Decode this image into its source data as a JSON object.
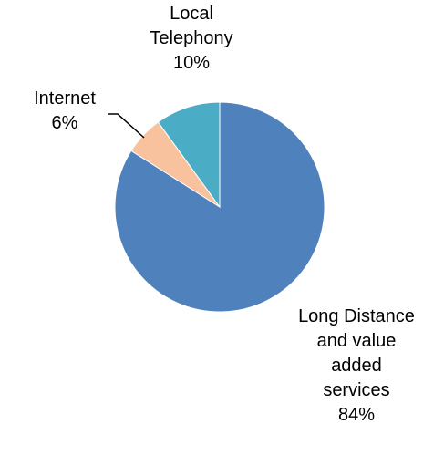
{
  "chart_data": {
    "type": "pie",
    "title": "",
    "slices": [
      {
        "name": "Long Distance and value added services",
        "value": 84,
        "value_label": "84%",
        "label_lines": [
          "Long Distance",
          "and value",
          "added",
          "services"
        ],
        "color": "#4f81bd"
      },
      {
        "name": "Internet",
        "value": 6,
        "value_label": "6%",
        "label_lines": [
          "Internet"
        ],
        "color": "#f9c29f"
      },
      {
        "name": "Local Telephony",
        "value": 10,
        "value_label": "10%",
        "label_lines": [
          "Local",
          "Telephony"
        ],
        "color": "#4bacc6"
      }
    ],
    "start_angle_deg": 0,
    "direction": "clockwise",
    "legend": "none",
    "leader_lines": [
      "Internet"
    ]
  }
}
